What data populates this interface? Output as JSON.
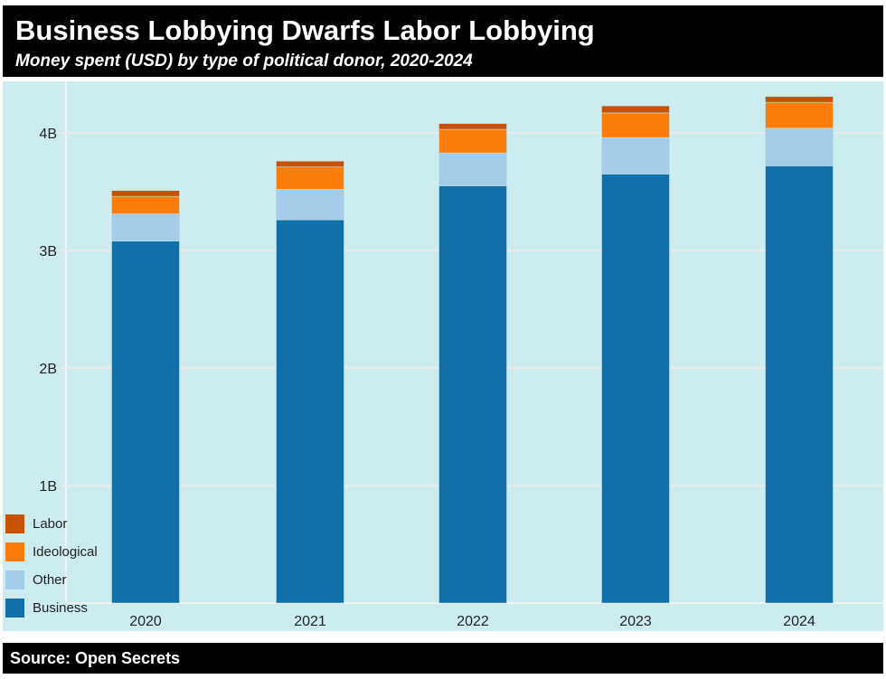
{
  "header": {
    "title": "Business Lobbying Dwarfs Labor Lobbying",
    "subtitle": "Money spent (USD) by type of political donor, 2020-2024"
  },
  "footer": {
    "source": "Source: Open Secrets"
  },
  "chart_data": {
    "type": "bar",
    "stacked": true,
    "categories": [
      "2020",
      "2021",
      "2022",
      "2023",
      "2024"
    ],
    "series": [
      {
        "name": "Business",
        "color": "#1170aa",
        "values": [
          3.08,
          3.26,
          3.55,
          3.65,
          3.72
        ]
      },
      {
        "name": "Other",
        "color": "#a3cce9",
        "values": [
          0.23,
          0.26,
          0.28,
          0.31,
          0.32
        ]
      },
      {
        "name": "Ideological",
        "color": "#fc7d0b",
        "values": [
          0.15,
          0.19,
          0.2,
          0.21,
          0.22
        ]
      },
      {
        "name": "Labor",
        "color": "#c85200",
        "values": [
          0.05,
          0.05,
          0.05,
          0.06,
          0.05
        ]
      }
    ],
    "yunit": "billion USD",
    "yticks": [
      {
        "v": 1,
        "label": "1B"
      },
      {
        "v": 2,
        "label": "2B"
      },
      {
        "v": 3,
        "label": "3B"
      },
      {
        "v": 4,
        "label": "4B"
      }
    ],
    "ylim": [
      0,
      4.45
    ],
    "grid": true,
    "legend_placement": "bottom-left",
    "legend_order": [
      "Labor",
      "Ideological",
      "Other",
      "Business"
    ]
  }
}
